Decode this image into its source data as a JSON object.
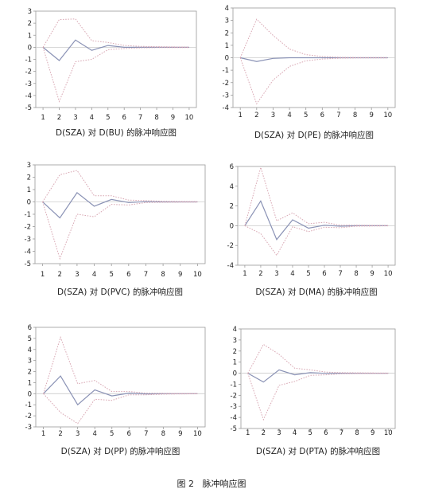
{
  "figure": {
    "caption": "图 2   脉冲响应图"
  },
  "colors": {
    "response": "#8a92b5",
    "band": "#d9a8b4",
    "zero_line": "#cccccc",
    "frame": "#9a9a9a"
  },
  "chart_data": [
    {
      "type": "line",
      "title": "D(SZA) 对 D(BU) 的脉冲响应图",
      "x": [
        1,
        2,
        3,
        4,
        5,
        6,
        7,
        8,
        9,
        10
      ],
      "ylim": [
        -5,
        3
      ],
      "yticks": [
        "-5",
        "-4",
        "-3",
        "-2",
        "-1",
        "0",
        "1",
        "2",
        "3"
      ],
      "xticks": [
        "1",
        "2",
        "3",
        "4",
        "5",
        "6",
        "7",
        "8",
        "9",
        "10"
      ],
      "series": [
        {
          "role": "response",
          "values": [
            0,
            -1.1,
            0.6,
            -0.25,
            0.15,
            0,
            0,
            0,
            0,
            0
          ]
        },
        {
          "role": "upper",
          "values": [
            0,
            2.3,
            2.35,
            0.55,
            0.4,
            0.15,
            0.08,
            0.05,
            0.03,
            0.02
          ]
        },
        {
          "role": "lower",
          "values": [
            0,
            -4.5,
            -1.2,
            -1.0,
            -0.2,
            -0.1,
            -0.05,
            -0.03,
            -0.02,
            -0.02
          ]
        }
      ]
    },
    {
      "type": "line",
      "title": "D(SZA) 对 D(PE) 的脉冲响应图",
      "x": [
        1,
        2,
        3,
        4,
        5,
        6,
        7,
        8,
        9,
        10
      ],
      "ylim": [
        -4,
        4
      ],
      "yticks": [
        "-4",
        "-3",
        "-2",
        "-1",
        "0",
        "1",
        "2",
        "3",
        "4"
      ],
      "xticks": [
        "1",
        "2",
        "3",
        "4",
        "5",
        "6",
        "7",
        "8",
        "9",
        "10"
      ],
      "series": [
        {
          "role": "response",
          "values": [
            0,
            -0.3,
            -0.05,
            0,
            0,
            0,
            0,
            0,
            0,
            0
          ]
        },
        {
          "role": "upper",
          "values": [
            0,
            3.1,
            1.8,
            0.7,
            0.25,
            0.1,
            0.04,
            0.02,
            0.01,
            0.01
          ]
        },
        {
          "role": "lower",
          "values": [
            0,
            -3.7,
            -1.8,
            -0.7,
            -0.25,
            -0.1,
            -0.04,
            -0.02,
            -0.01,
            -0.01
          ]
        }
      ]
    },
    {
      "type": "line",
      "title": "D(SZA) 对 D(PVC) 的脉冲响应图",
      "x": [
        1,
        2,
        3,
        4,
        5,
        6,
        7,
        8,
        9,
        10
      ],
      "ylim": [
        -5,
        3
      ],
      "yticks": [
        "-5",
        "-4",
        "-3",
        "-2",
        "-1",
        "0",
        "1",
        "2",
        "3"
      ],
      "xticks": [
        "1",
        "2",
        "3",
        "4",
        "5",
        "6",
        "7",
        "8",
        "9",
        "10"
      ],
      "series": [
        {
          "role": "response",
          "values": [
            0,
            -1.3,
            0.75,
            -0.35,
            0.2,
            -0.05,
            0.02,
            0,
            0,
            0
          ]
        },
        {
          "role": "upper",
          "values": [
            0,
            2.2,
            2.55,
            0.5,
            0.5,
            0.15,
            0.1,
            0.05,
            0.03,
            0.02
          ]
        },
        {
          "role": "lower",
          "values": [
            0,
            -4.6,
            -1.0,
            -1.2,
            -0.2,
            -0.25,
            -0.05,
            -0.03,
            -0.02,
            -0.02
          ]
        }
      ]
    },
    {
      "type": "line",
      "title": "D(SZA) 对 D(MA) 的脉冲响应图",
      "x": [
        1,
        2,
        3,
        4,
        5,
        6,
        7,
        8,
        9,
        10
      ],
      "ylim": [
        -4,
        6
      ],
      "yticks": [
        "-4",
        "-2",
        "0",
        "2",
        "4",
        "6"
      ],
      "xticks": [
        "1",
        "2",
        "3",
        "4",
        "5",
        "6",
        "7",
        "8",
        "9",
        "10"
      ],
      "series": [
        {
          "role": "response",
          "values": [
            0,
            2.5,
            -1.4,
            0.6,
            -0.25,
            0.05,
            -0.05,
            0,
            0,
            0
          ]
        },
        {
          "role": "upper",
          "values": [
            0,
            5.9,
            0.5,
            1.3,
            0.2,
            0.35,
            0.05,
            0.05,
            0.03,
            0.02
          ]
        },
        {
          "role": "lower",
          "values": [
            0,
            -0.8,
            -3.0,
            -0.1,
            -0.6,
            -0.15,
            -0.2,
            -0.05,
            -0.03,
            -0.02
          ]
        }
      ]
    },
    {
      "type": "line",
      "title": "D(SZA) 对 D(PP) 的脉冲响应图",
      "x": [
        1,
        2,
        3,
        4,
        5,
        6,
        7,
        8,
        9,
        10
      ],
      "ylim": [
        -3,
        6
      ],
      "yticks": [
        "-3",
        "-2",
        "-1",
        "0",
        "1",
        "2",
        "3",
        "4",
        "5",
        "6"
      ],
      "xticks": [
        "1",
        "2",
        "3",
        "4",
        "5",
        "6",
        "7",
        "8",
        "9",
        "10"
      ],
      "series": [
        {
          "role": "response",
          "values": [
            0,
            1.6,
            -1.0,
            0.35,
            -0.2,
            0.05,
            -0.02,
            0,
            0,
            0
          ]
        },
        {
          "role": "upper",
          "values": [
            0,
            5.1,
            0.9,
            1.2,
            0.2,
            0.2,
            0.05,
            0.04,
            0.02,
            0.01
          ]
        },
        {
          "role": "lower",
          "values": [
            0,
            -1.7,
            -2.7,
            -0.5,
            -0.6,
            -0.1,
            -0.1,
            -0.04,
            -0.02,
            -0.01
          ]
        }
      ]
    },
    {
      "type": "line",
      "title": "D(SZA) 对 D(PTA) 的脉冲响应图",
      "x": [
        1,
        2,
        3,
        4,
        5,
        6,
        7,
        8,
        9,
        10
      ],
      "ylim": [
        -5,
        4
      ],
      "yticks": [
        "-5",
        "-4",
        "-3",
        "-2",
        "-1",
        "0",
        "1",
        "2",
        "3",
        "4"
      ],
      "xticks": [
        "1",
        "2",
        "3",
        "4",
        "5",
        "6",
        "7",
        "8",
        "9",
        "10"
      ],
      "series": [
        {
          "role": "response",
          "values": [
            0,
            -0.8,
            0.3,
            -0.15,
            0.05,
            -0.02,
            0,
            0,
            0,
            0
          ]
        },
        {
          "role": "upper",
          "values": [
            0,
            2.6,
            1.7,
            0.45,
            0.3,
            0.1,
            0.05,
            0.03,
            0.02,
            0.01
          ]
        },
        {
          "role": "lower",
          "values": [
            0,
            -4.2,
            -1.1,
            -0.75,
            -0.2,
            -0.15,
            -0.05,
            -0.03,
            -0.02,
            -0.01
          ]
        }
      ]
    }
  ]
}
